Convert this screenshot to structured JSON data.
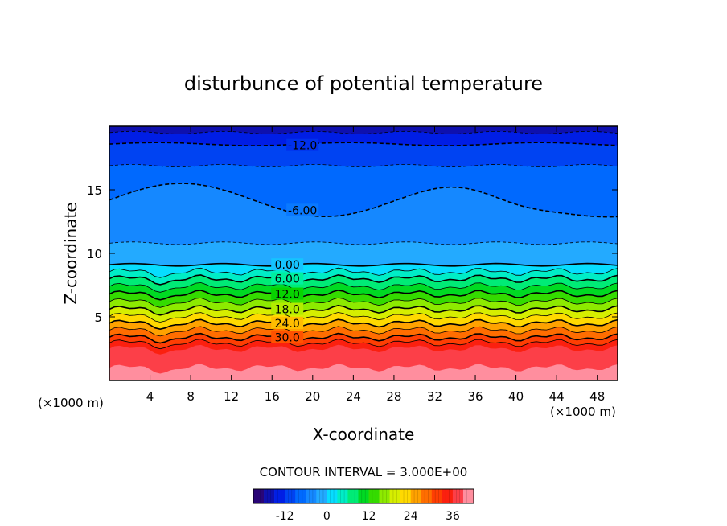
{
  "chart_data": {
    "type": "heatmap",
    "title": "disturbunce of potential temperature",
    "xlabel": "X-coordinate",
    "ylabel": "Z-coordinate",
    "x_unit_left": "(×1000 m)",
    "x_unit_right": "(×1000 m)",
    "xlim": [
      0,
      50
    ],
    "ylim": [
      0,
      20
    ],
    "x_ticks": [
      4,
      8,
      12,
      16,
      20,
      24,
      28,
      32,
      36,
      40,
      44,
      48
    ],
    "y_ticks": [
      5,
      10,
      15
    ],
    "contour_interval_text": "CONTOUR INTERVAL = 3.000E+00",
    "contour_interval": 3,
    "contour_labels": [
      {
        "text": "-12.0",
        "value": -12,
        "x": 19,
        "z": 18.5
      },
      {
        "text": "-6.00",
        "value": -6,
        "x": 19,
        "z": 13.4
      },
      {
        "text": "0.00",
        "value": 0,
        "x": 17.5,
        "z": 9.1
      },
      {
        "text": "6.00",
        "value": 6,
        "x": 17.5,
        "z": 8.0
      },
      {
        "text": "12.0",
        "value": 12,
        "x": 17.5,
        "z": 6.8
      },
      {
        "text": "18.0",
        "value": 18,
        "x": 17.5,
        "z": 5.6
      },
      {
        "text": "24.0",
        "value": 24,
        "x": 17.5,
        "z": 4.5
      },
      {
        "text": "30.0",
        "value": 30,
        "x": 17.5,
        "z": 3.4
      }
    ],
    "colorbar": {
      "range": [
        -21,
        42
      ],
      "ticks": [
        -12,
        0,
        12,
        24,
        36
      ],
      "tick_labels": [
        "-12",
        "0",
        "12",
        "24",
        "36"
      ]
    }
  }
}
